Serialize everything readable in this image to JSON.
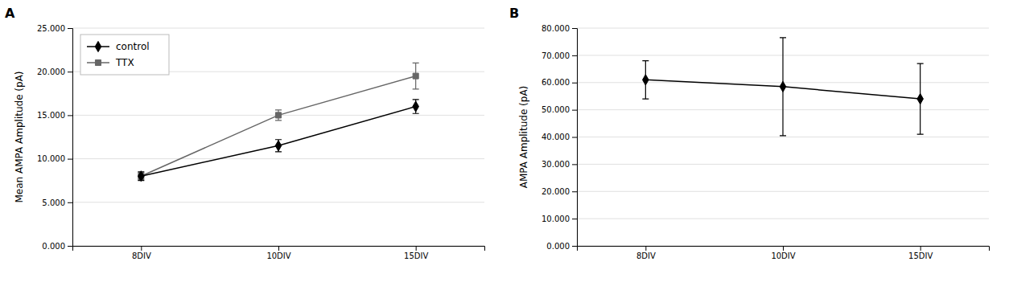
{
  "chart_data": [
    {
      "type": "line",
      "title": "A",
      "categories": [
        "8DIV",
        "10DIV",
        "15DIV"
      ],
      "ylabel": "Mean AMPA Amplitude (pA)",
      "ylim": [
        0,
        25000
      ],
      "yticks": [
        {
          "value": 0,
          "label": "0.000"
        },
        {
          "value": 5000,
          "label": "5.000"
        },
        {
          "value": 10000,
          "label": "10.000"
        },
        {
          "value": 15000,
          "label": "15.000"
        },
        {
          "value": 20000,
          "label": "20.000"
        },
        {
          "value": 25000,
          "label": "25.000"
        }
      ],
      "grid": true,
      "legend": "upper left",
      "series": [
        {
          "name": "control",
          "color": "#000000",
          "marker": "diamond",
          "values": [
            8000,
            11500,
            16000
          ],
          "errors": [
            500,
            700,
            800
          ]
        },
        {
          "name": "TTX",
          "color": "#666666",
          "marker": "square",
          "values": [
            8000,
            15000,
            19500
          ],
          "errors": [
            400,
            600,
            1500
          ]
        }
      ]
    },
    {
      "type": "line",
      "title": "B",
      "categories": [
        "8DIV",
        "10DIV",
        "15DIV"
      ],
      "ylabel": "AMPA Amplitude (pA)",
      "ylim": [
        0,
        80000
      ],
      "yticks": [
        {
          "value": 0,
          "label": "0.000"
        },
        {
          "value": 10000,
          "label": "10.000"
        },
        {
          "value": 20000,
          "label": "20.000"
        },
        {
          "value": 30000,
          "label": "30.000"
        },
        {
          "value": 40000,
          "label": "40.000"
        },
        {
          "value": 50000,
          "label": "50.000"
        },
        {
          "value": 60000,
          "label": "60.000"
        },
        {
          "value": 70000,
          "label": "70.000"
        },
        {
          "value": 80000,
          "label": "80.000"
        }
      ],
      "grid": true,
      "series": [
        {
          "color": "#000000",
          "marker": "diamond",
          "values": [
            61000,
            58500,
            54000
          ],
          "error_low": [
            7000,
            18000,
            13000
          ],
          "error_high": [
            7000,
            18000,
            13000
          ]
        }
      ]
    }
  ]
}
